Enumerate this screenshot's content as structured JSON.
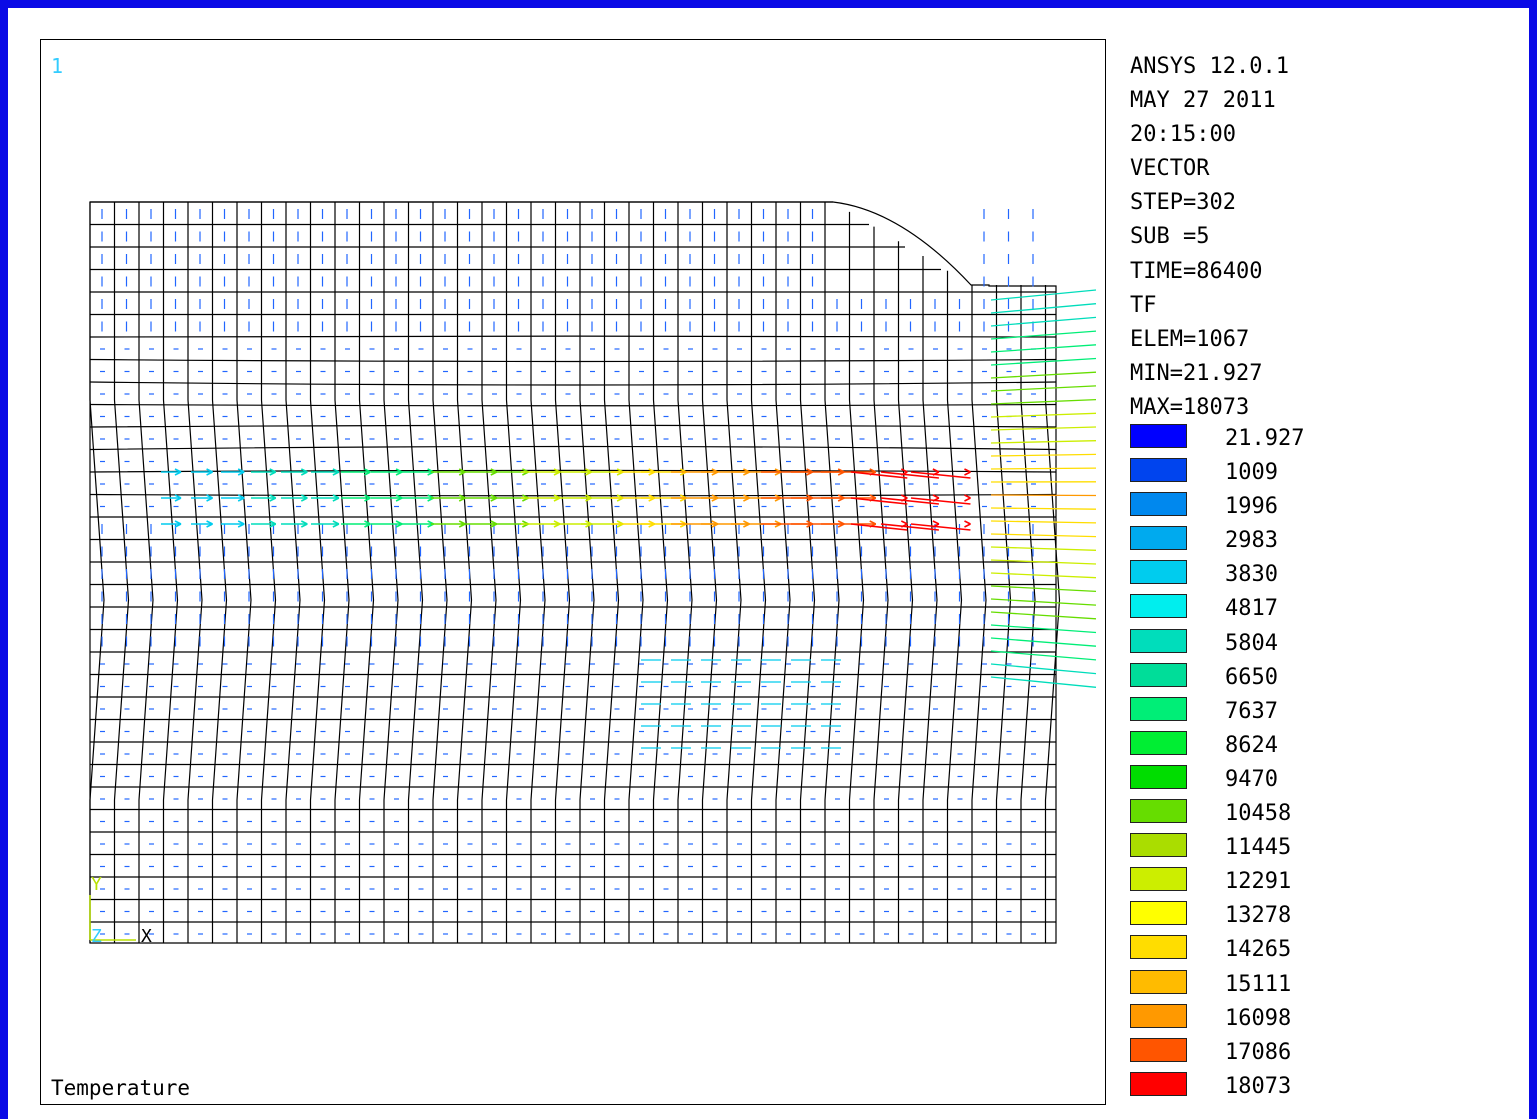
{
  "viewport": {
    "window_number": "1",
    "plot_label": "Temperature"
  },
  "info": {
    "lines": [
      "ANSYS 12.0.1",
      "MAY 27 2011",
      "20:15:00",
      "VECTOR",
      "STEP=302",
      "SUB =5",
      "TIME=86400",
      "TF",
      "ELEM=1067",
      "MIN=21.927",
      "MAX=18073"
    ]
  },
  "legend": {
    "entries": [
      {
        "value": "21.927",
        "color": "#0000ff"
      },
      {
        "value": "1009",
        "color": "#0044ee"
      },
      {
        "value": "1996",
        "color": "#0088ee"
      },
      {
        "value": "2983",
        "color": "#00aaee"
      },
      {
        "value": "3830",
        "color": "#00ccee"
      },
      {
        "value": "4817",
        "color": "#00eeee"
      },
      {
        "value": "5804",
        "color": "#00ddbb"
      },
      {
        "value": "6650",
        "color": "#00dd99"
      },
      {
        "value": "7637",
        "color": "#00ee77"
      },
      {
        "value": "8624",
        "color": "#00ee33"
      },
      {
        "value": "9470",
        "color": "#00dd00"
      },
      {
        "value": "10458",
        "color": "#66dd00"
      },
      {
        "value": "11445",
        "color": "#aadd00"
      },
      {
        "value": "12291",
        "color": "#ccee00"
      },
      {
        "value": "13278",
        "color": "#ffff00"
      },
      {
        "value": "14265",
        "color": "#ffdd00"
      },
      {
        "value": "15111",
        "color": "#ffbb00"
      },
      {
        "value": "16098",
        "color": "#ff9900"
      },
      {
        "value": "17086",
        "color": "#ff5500"
      },
      {
        "value": "18073",
        "color": "#ff0000"
      }
    ]
  },
  "triad": {
    "y_label": "Y",
    "z_label": "Z",
    "x_label": "X"
  }
}
